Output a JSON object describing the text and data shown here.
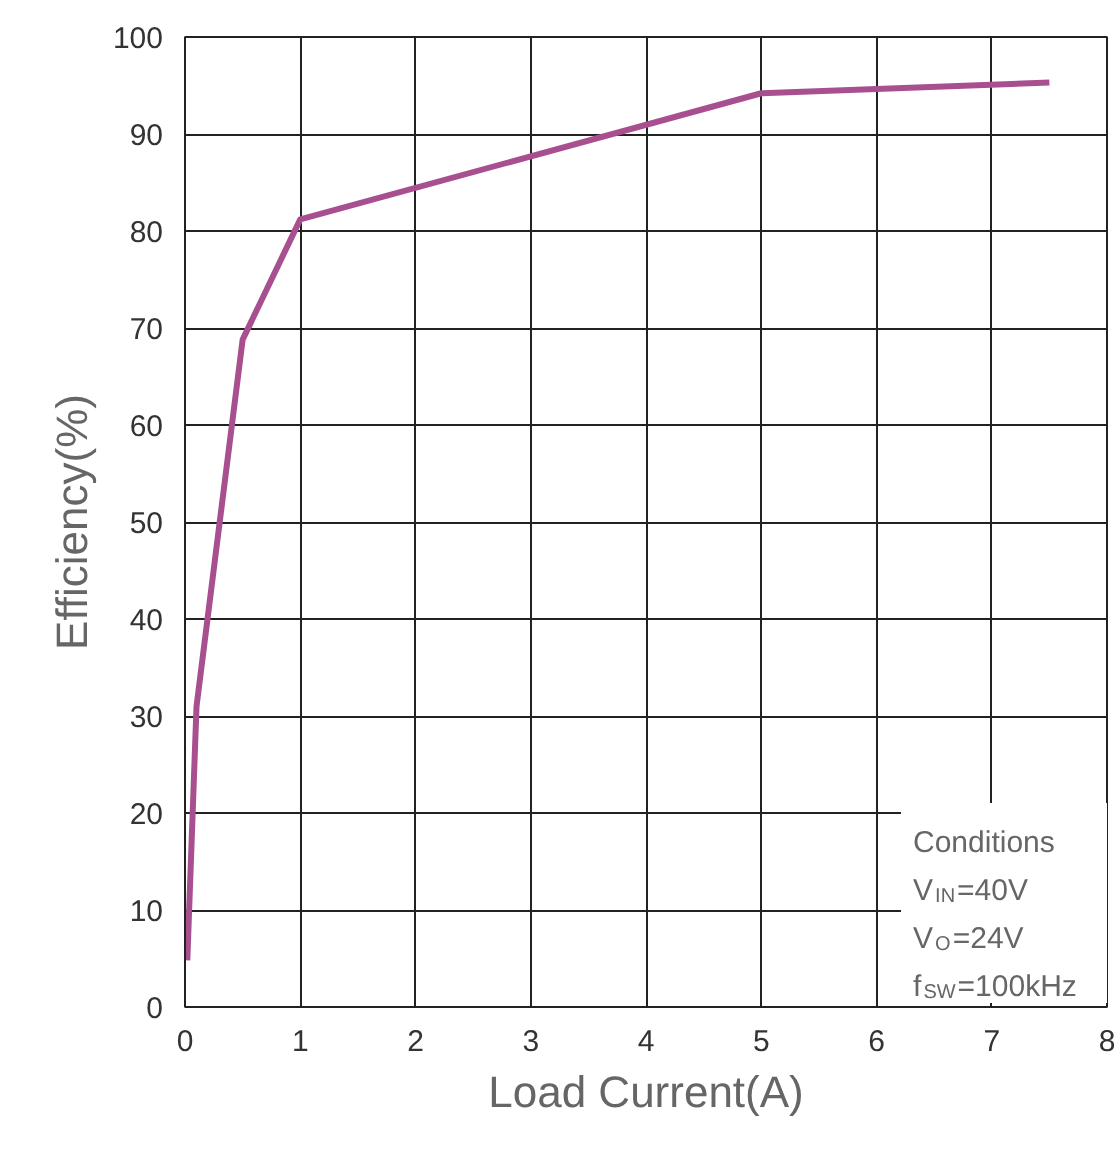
{
  "chart_data": {
    "type": "line",
    "xlabel": "Load Current(A)",
    "ylabel": "Efficiency(%)",
    "x": [
      0.02,
      0.1,
      0.5,
      1,
      5,
      7.5
    ],
    "series": [
      {
        "color": "#a8508f",
        "values": [
          4.8,
          31,
          68.8,
          81.2,
          94.2,
          95.3
        ]
      }
    ],
    "xlim": [
      0,
      8
    ],
    "xticks": [
      0,
      1,
      2,
      3,
      4,
      5,
      6,
      7,
      8
    ],
    "ylim": [
      0,
      100
    ],
    "yticks": [
      0,
      10,
      20,
      30,
      40,
      50,
      60,
      70,
      80,
      90,
      100
    ],
    "grid": true,
    "marker": "none",
    "line_style": "solid",
    "annotations": [
      "Conditions",
      "V$_{IN}$=40V",
      "V$_{O}$=24V",
      "f$_{SW}$=100kHz"
    ]
  }
}
